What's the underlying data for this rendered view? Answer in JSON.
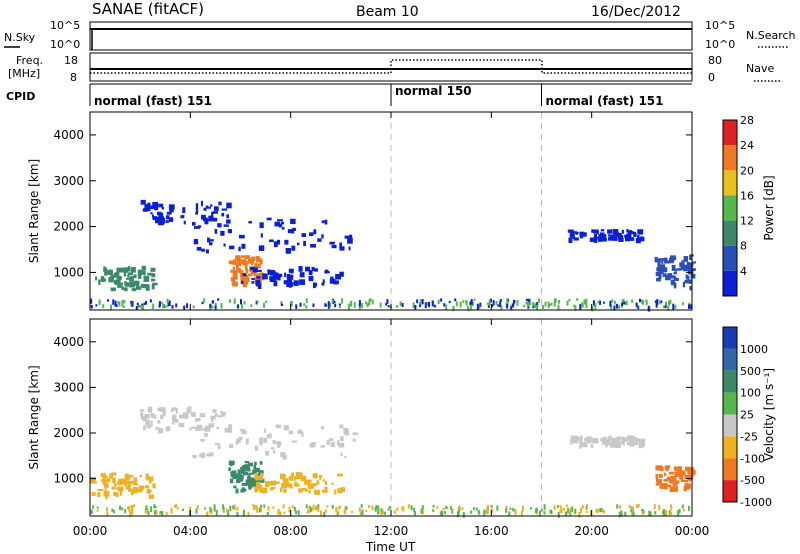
{
  "header": {
    "station": "SANAE (fitACF)",
    "beam": "Beam 10",
    "date": "16/Dec/2012"
  },
  "top_panels": {
    "nsky_label": "N.Sky",
    "nsearch_label": "N.Search",
    "freq_label_1": "Freq.",
    "freq_label_2": "[MHz]",
    "nave_label": "Nave",
    "cpid_label": "CPID",
    "nsky_ticks": [
      "10^5",
      "10^0"
    ],
    "nsearch_ticks": [
      "10^5",
      "10^0"
    ],
    "freq_ticks": [
      "18",
      "8"
    ],
    "nave_ticks": [
      "80",
      "0"
    ]
  },
  "cpid_segments": [
    {
      "label": "normal (fast) 151",
      "start_h": 0,
      "end_h": 12
    },
    {
      "label": "normal 150",
      "start_h": 12,
      "end_h": 18
    },
    {
      "label": "normal (fast) 151",
      "start_h": 18,
      "end_h": 24
    }
  ],
  "x_axis": {
    "label": "Time UT",
    "ticks": [
      "00:00",
      "04:00",
      "08:00",
      "12:00",
      "16:00",
      "20:00",
      "00:00"
    ],
    "range_h": [
      0,
      24
    ]
  },
  "panels": [
    {
      "id": "power",
      "ylabel": "Slant Range [km]",
      "yticks": [
        "1000",
        "2000",
        "3000",
        "4000"
      ],
      "colorbar_label": "Power [dB]",
      "colorbar_ticks": [
        "4",
        "8",
        "12",
        "16",
        "20",
        "24",
        "28"
      ],
      "colors": [
        "#0a1fd6",
        "#2a4fb8",
        "#3a8a6a",
        "#55b84a",
        "#e8c020",
        "#f07820",
        "#e02020"
      ]
    },
    {
      "id": "velocity",
      "ylabel": "Slant Range [km]",
      "yticks": [
        "1000",
        "2000",
        "3000",
        "4000"
      ],
      "colorbar_label": "Velocity [m s⁻¹]",
      "colorbar_ticks": [
        "1000",
        "500",
        "100",
        "25",
        "-25",
        "-100",
        "-500",
        "-1000"
      ],
      "colors": [
        "#1a3ab8",
        "#2f6aa8",
        "#3a8a6a",
        "#55b84a",
        "#c8c8c8",
        "#f0b020",
        "#f07820",
        "#e02020"
      ]
    }
  ],
  "chart_data": [
    {
      "type": "heatmap",
      "title": "Power",
      "ylabel": "Slant Range [km]",
      "xlabel": "Time UT",
      "ylim": [
        180,
        4500
      ],
      "xlim_h": [
        0,
        24
      ],
      "blobs": [
        {
          "t0": 0.2,
          "t1": 2.5,
          "r0": 650,
          "r1": 1150,
          "level": 12
        },
        {
          "t0": 2.0,
          "t1": 5.5,
          "r0": 2100,
          "r1": 2600,
          "level": 6
        },
        {
          "t0": 5.5,
          "t1": 6.8,
          "r0": 750,
          "r1": 1400,
          "level": 20
        },
        {
          "t0": 6.0,
          "t1": 10.0,
          "r0": 750,
          "r1": 1150,
          "level": 6
        },
        {
          "t0": 4.0,
          "t1": 10.5,
          "r0": 1500,
          "r1": 2200,
          "level": 5
        },
        {
          "t0": 22.5,
          "t1": 24,
          "r0": 700,
          "r1": 1400,
          "level": 10
        },
        {
          "t0": 19.0,
          "t1": 22.0,
          "r0": 1750,
          "r1": 1950,
          "level": 5
        }
      ]
    },
    {
      "type": "heatmap",
      "title": "Velocity",
      "ylabel": "Slant Range [km]",
      "xlabel": "Time UT",
      "ylim": [
        180,
        4500
      ],
      "xlim_h": [
        0,
        24
      ],
      "blobs": [
        {
          "t0": 0.0,
          "t1": 2.5,
          "r0": 650,
          "r1": 1150,
          "level": -100
        },
        {
          "t0": 2.0,
          "t1": 5.5,
          "r0": 2100,
          "r1": 2600,
          "level": 0
        },
        {
          "t0": 5.5,
          "t1": 6.8,
          "r0": 750,
          "r1": 1400,
          "level": 200
        },
        {
          "t0": 6.5,
          "t1": 10.0,
          "r0": 750,
          "r1": 1150,
          "level": -100
        },
        {
          "t0": 4.0,
          "t1": 10.5,
          "r0": 1500,
          "r1": 2200,
          "level": 0
        },
        {
          "t0": 22.5,
          "t1": 24,
          "r0": 800,
          "r1": 1300,
          "level": -500
        },
        {
          "t0": 19.0,
          "t1": 22.0,
          "r0": 1750,
          "r1": 1950,
          "level": 0
        }
      ]
    }
  ]
}
